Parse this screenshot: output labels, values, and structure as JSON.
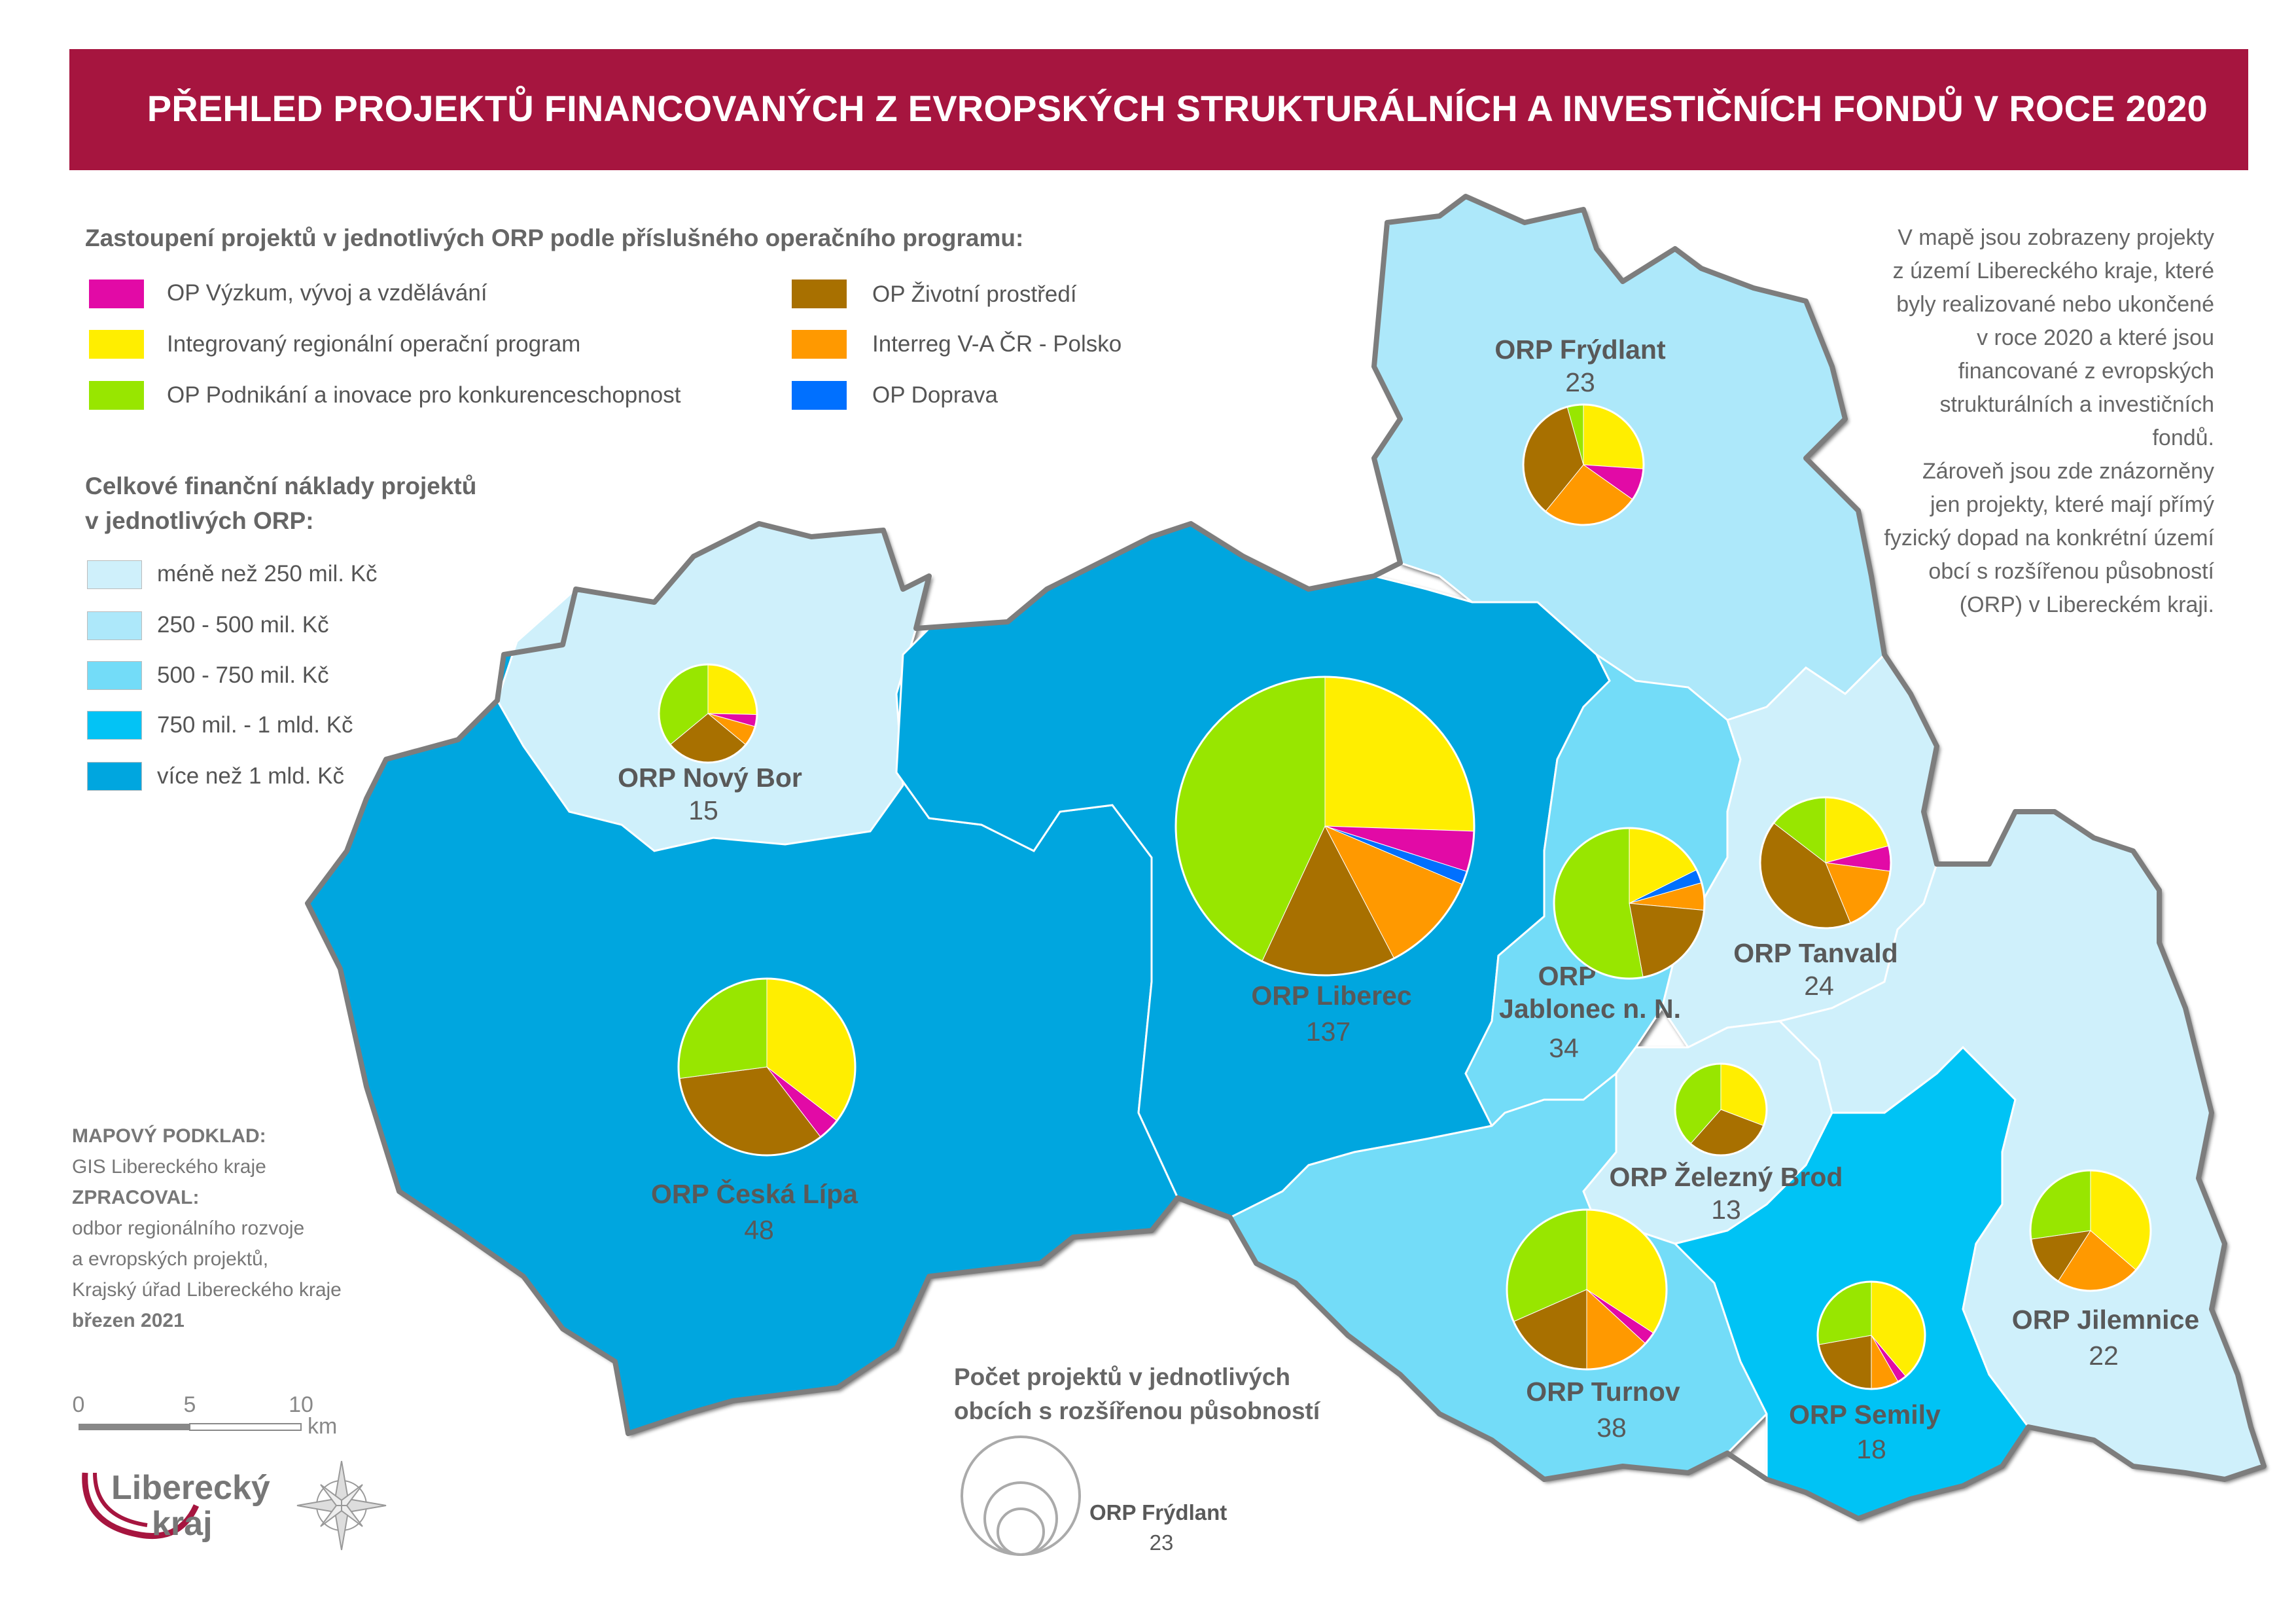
{
  "title": "PŘEHLED PROJEKTŮ FINANCOVANÝCH Z EVROPSKÝCH STRUKTURÁLNÍCH A INVESTIČNÍCH FONDŮ V ROCE 2020",
  "legend_programs": {
    "heading": "Zastoupení projektů v jednotlivých ORP podle příslušného operačního programu:",
    "items": [
      {
        "label": "OP Výzkum, vývoj a vzdělávání",
        "color": "#e20aa6"
      },
      {
        "label": "Integrovaný regionální operační program",
        "color": "#ffee00"
      },
      {
        "label": "OP Podnikání a inovace pro konkurenceschopnost",
        "color": "#98e600"
      },
      {
        "label": "OP Životní prostředí",
        "color": "#a87000"
      },
      {
        "label": "Interreg V-A ČR - Polsko",
        "color": "#ff9900"
      },
      {
        "label": "OP Doprava",
        "color": "#0070ff"
      }
    ]
  },
  "legend_costs": {
    "heading_line1": "Celkové finanční náklady projektů",
    "heading_line2": "v jednotlivých ORP:",
    "classes": [
      {
        "label": "méně než 250 mil. Kč",
        "color": "#cff0fb"
      },
      {
        "label": "250 - 500 mil. Kč",
        "color": "#ade8fa"
      },
      {
        "label": "500 - 750 mil. Kč",
        "color": "#73dcf8"
      },
      {
        "label": "750 mil. - 1 mld. Kč",
        "color": "#03c3f5"
      },
      {
        "label": "více než 1 mld. Kč",
        "color": "#00a6df"
      }
    ]
  },
  "info_text": [
    "V mapě jsou zobrazeny projekty",
    "z území Libereckého kraje, které",
    "byly realizované nebo ukončené",
    "v roce 2020 a které jsou",
    "financované z evropských",
    "strukturálních a investičních",
    "fondů.",
    "Zároveň jsou zde znázorněny",
    "jen projekty, které mají přímý",
    "fyzický dopad na konkrétní území",
    "obcí s rozšířenou působností",
    "(ORP) v Libereckém kraji."
  ],
  "credits": {
    "basemap_label": "MAPOVÝ PODKLAD:",
    "basemap_value": "GIS Libereckého kraje",
    "author_label": "ZPRACOVAL:",
    "author_lines": [
      "odbor regionálního rozvoje",
      "a evropských projektů,",
      "Krajský úřad Libereckého kraje"
    ],
    "date": "březen 2021"
  },
  "scale": {
    "ticks": [
      "0",
      "5",
      "10"
    ],
    "unit": "km"
  },
  "logo": {
    "line1": "Liberecký",
    "line2": "kraj"
  },
  "size_legend": {
    "heading_line1": "Počet projektů v jednotlivých",
    "heading_line2": "obcích s rozšířenou působností",
    "example_name": "ORP Frýdlant",
    "example_count": "23"
  },
  "regions": [
    {
      "id": "frydlant",
      "name": "ORP Frýdlant",
      "count": "23",
      "fill": "#ade8fa"
    },
    {
      "id": "novybor",
      "name": "ORP Nový Bor",
      "count": "15",
      "fill": "#cff0fb"
    },
    {
      "id": "ceskalipa",
      "name": "ORP Česká Lípa",
      "count": "48",
      "fill": "#00a6df"
    },
    {
      "id": "liberec",
      "name": "ORP Liberec",
      "count": "137",
      "fill": "#00a6df"
    },
    {
      "id": "jablonec",
      "name_line1": "ORP",
      "name_line2": "Jablonec n. N.",
      "count": "34",
      "fill": "#73dcf8"
    },
    {
      "id": "tanvald",
      "name": "ORP Tanvald",
      "count": "24",
      "fill": "#cff0fb"
    },
    {
      "id": "zelezny",
      "name": "ORP Železný Brod",
      "count": "13",
      "fill": "#cff0fb"
    },
    {
      "id": "turnov",
      "name": "ORP Turnov",
      "count": "38",
      "fill": "#73dcf8"
    },
    {
      "id": "semily",
      "name": "ORP Semily",
      "count": "18",
      "fill": "#03c3f5"
    },
    {
      "id": "jilemnice",
      "name": "ORP Jilemnice",
      "count": "22",
      "fill": "#cff0fb"
    }
  ],
  "pie_data": [
    {
      "region": "ORP Frýdlant",
      "slices": {
        "OP Výzkum, vývoj a vzdělávání": 2,
        "Integrovaný regionální operační program": 6,
        "OP Podnikání a inovace pro konkurenceschopnost": 1,
        "OP Životní prostředí": 8,
        "Interreg V-A ČR - Polsko": 6,
        "OP Doprava": 0
      }
    },
    {
      "region": "ORP Nový Bor",
      "slices": {
        "OP Výzkum, vývoj a vzdělávání": 0.6,
        "Integrovaný regionální operační program": 3.8,
        "OP Podnikání a inovace pro konkurenceschopnost": 5.4,
        "OP Životní prostředí": 4.2,
        "Interreg V-A ČR - Polsko": 1,
        "OP Doprava": 0
      }
    },
    {
      "region": "ORP Česká Lípa",
      "slices": {
        "OP Výzkum, vývoj a vzdělávání": 2,
        "Integrovaný regionální operační program": 17,
        "OP Podnikání a inovace pro konkurenceschopnost": 13,
        "OP Životní prostředí": 16,
        "Interreg V-A ČR - Polsko": 0,
        "OP Doprava": 0
      }
    },
    {
      "region": "ORP Liberec",
      "slices": {
        "OP Výzkum, vývoj a vzdělávání": 6,
        "Integrovaný regionální operační program": 35,
        "OP Podnikání a inovace pro konkurenceschopnost": 59,
        "OP Životní prostředí": 20,
        "Interreg V-A ČR - Polsko": 15,
        "OP Doprava": 2
      }
    },
    {
      "region": "ORP Jablonec n. N.",
      "slices": {
        "OP Výzkum, vývoj a vzdělávání": 0,
        "Integrovaný regionální operační program": 6,
        "OP Podnikání a inovace pro konkurenceschopnost": 18,
        "OP Životní prostředí": 7,
        "Interreg V-A ČR - Polsko": 2,
        "OP Doprava": 1
      }
    },
    {
      "region": "ORP Tanvald",
      "slices": {
        "OP Výzkum, vývoj a vzdělávání": 1.5,
        "Integrovaný regionální operační program": 5,
        "OP Podnikání a inovace pro konkurenceschopnost": 3.5,
        "OP Životní prostředí": 10,
        "Interreg V-A ČR - Polsko": 4,
        "OP Doprava": 0
      }
    },
    {
      "region": "ORP Železný Brod",
      "slices": {
        "OP Výzkum, vývoj a vzdělávání": 0,
        "Integrovaný regionální operační program": 4,
        "OP Podnikání a inovace pro konkurenceschopnost": 5,
        "OP Životní prostředí": 4,
        "Interreg V-A ČR - Polsko": 0,
        "OP Doprava": 0
      }
    },
    {
      "region": "ORP Turnov",
      "slices": {
        "OP Výzkum, vývoj a vzdělávání": 1,
        "Integrovaný regionální operační program": 13,
        "OP Podnikání a inovace pro konkurenceschopnost": 12,
        "OP Životní prostředí": 7,
        "Interreg V-A ČR - Polsko": 5,
        "OP Doprava": 0
      }
    },
    {
      "region": "ORP Semily",
      "slices": {
        "OP Výzkum, vývoj a vzdělávání": 0.5,
        "Integrovaný regionální operační program": 7,
        "OP Podnikání a inovace pro konkurenceschopnost": 5,
        "OP Životní prostředí": 4,
        "Interreg V-A ČR - Polsko": 1.5,
        "OP Doprava": 0
      }
    },
    {
      "region": "ORP Jilemnice",
      "slices": {
        "OP Výzkum, vývoj a vzdělávání": 0,
        "Integrovaný regionální operační program": 8,
        "OP Podnikání a inovace pro konkurenceschopnost": 6,
        "OP Životní prostředí": 3,
        "Interreg V-A ČR - Polsko": 5,
        "OP Doprava": 0
      }
    }
  ]
}
